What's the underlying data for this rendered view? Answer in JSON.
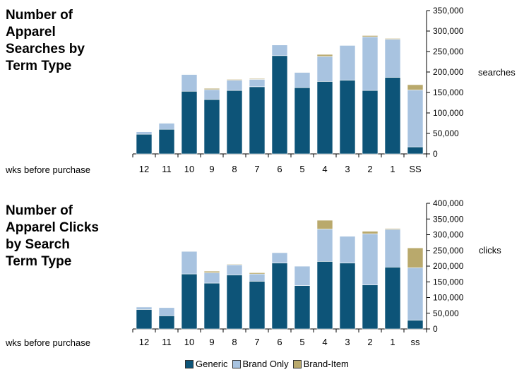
{
  "colors": {
    "generic": "#0d5478",
    "brand_only": "#a8c3e0",
    "brand_item": "#b9a96c"
  },
  "chart_data": [
    {
      "type": "bar",
      "stacked": true,
      "title": "Number of\nApparel\nSearches by\nTerm Type",
      "ylabel": "searches",
      "xlabel": "wks before purchase",
      "ylim": [
        0,
        350000
      ],
      "yticks": [
        "0",
        "50,000",
        "100,000",
        "150,000",
        "200,000",
        "250,000",
        "300,000",
        "350,000"
      ],
      "categories": [
        "12",
        "11",
        "10",
        "9",
        "8",
        "7",
        "6",
        "5",
        "4",
        "3",
        "2",
        "1",
        "SS"
      ],
      "series": [
        {
          "name": "Generic",
          "values": [
            48000,
            60000,
            153000,
            133000,
            155000,
            164000,
            240000,
            162000,
            177000,
            180000,
            155000,
            187000,
            17000
          ]
        },
        {
          "name": "Brand Only",
          "values": [
            6000,
            15000,
            41000,
            24000,
            25000,
            18000,
            26000,
            37000,
            61000,
            85000,
            131000,
            93000,
            139000
          ]
        },
        {
          "name": "Brand-Item",
          "values": [
            1000,
            1000,
            1000,
            3000,
            2000,
            2000,
            1000,
            1000,
            5000,
            1000,
            3000,
            2000,
            13000
          ]
        }
      ]
    },
    {
      "type": "bar",
      "stacked": true,
      "title": "Number of\nApparel Clicks\nby Search\nTerm Type",
      "ylabel": "clicks",
      "xlabel": "wks before purchase",
      "ylim": [
        0,
        400000
      ],
      "yticks": [
        "0",
        "50,000",
        "100,000",
        "150,000",
        "200,000",
        "250,000",
        "300,000",
        "350,000",
        "400,000"
      ],
      "categories": [
        "12",
        "11",
        "10",
        "9",
        "8",
        "7",
        "6",
        "5",
        "4",
        "3",
        "2",
        "1",
        "ss"
      ],
      "series": [
        {
          "name": "Generic",
          "values": [
            62000,
            42000,
            175000,
            146000,
            172000,
            152000,
            210000,
            138000,
            215000,
            210000,
            140000,
            197000,
            28000
          ]
        },
        {
          "name": "Brand Only",
          "values": [
            8000,
            26000,
            72000,
            33000,
            32000,
            23000,
            33000,
            62000,
            103000,
            85000,
            163000,
            120000,
            167000
          ]
        },
        {
          "name": "Brand-Item",
          "values": [
            1000,
            1000,
            1000,
            5000,
            2000,
            4000,
            1000,
            1000,
            28000,
            1000,
            8000,
            3000,
            63000
          ]
        }
      ]
    }
  ],
  "legend": [
    "Generic",
    "Brand Only",
    "Brand-Item"
  ]
}
